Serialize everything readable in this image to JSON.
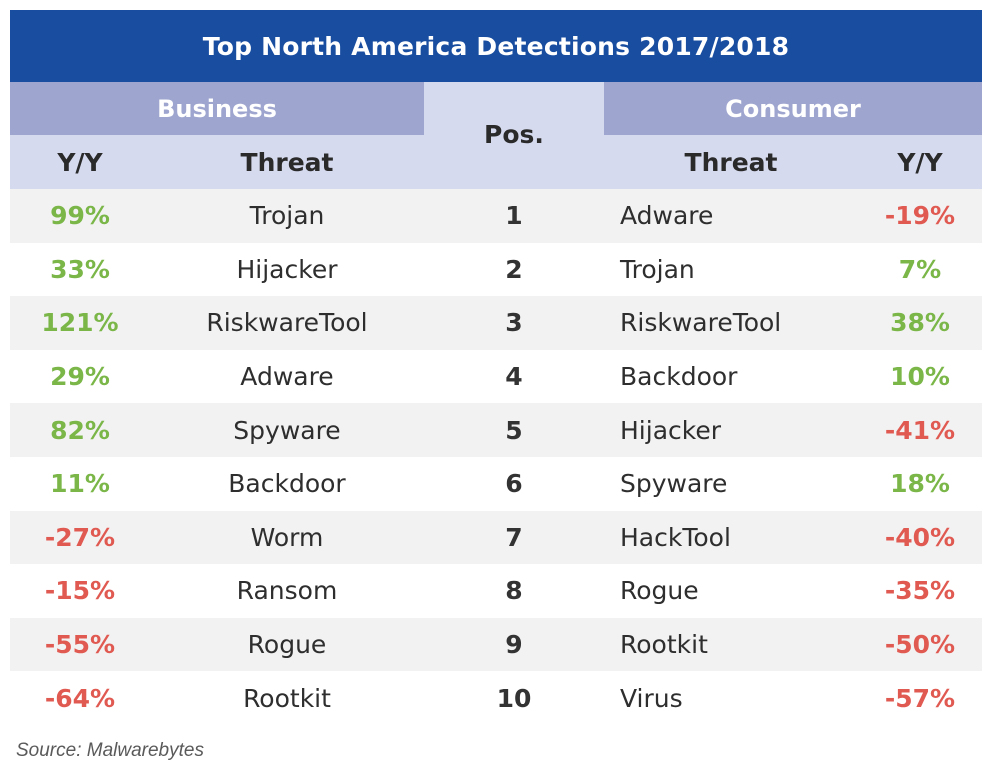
{
  "title": "Top North America Detections 2017/2018",
  "headers": {
    "business": "Business",
    "consumer": "Consumer",
    "pos": "Pos.",
    "yy": "Y/Y",
    "threat": "Threat"
  },
  "colors": {
    "title_bg": "#184da0",
    "group_header_bg": "#9ea5cf",
    "sub_header_bg": "#d6daef",
    "row_alt_bg": "#f2f2f2",
    "positive": "#7ab648",
    "negative": "#e05a52"
  },
  "chart_data": {
    "type": "table",
    "title": "Top North America Detections 2017/2018",
    "columns": [
      "Y/Y",
      "Threat",
      "Pos.",
      "Threat",
      "Y/Y"
    ],
    "rows": [
      {
        "pos": "1",
        "business_yy": "99%",
        "business_threat": "Trojan",
        "consumer_threat": "Adware",
        "consumer_yy": "-19%"
      },
      {
        "pos": "2",
        "business_yy": "33%",
        "business_threat": "Hijacker",
        "consumer_threat": "Trojan",
        "consumer_yy": "7%"
      },
      {
        "pos": "3",
        "business_yy": "121%",
        "business_threat": "RiskwareTool",
        "consumer_threat": "RiskwareTool",
        "consumer_yy": "38%"
      },
      {
        "pos": "4",
        "business_yy": "29%",
        "business_threat": "Adware",
        "consumer_threat": "Backdoor",
        "consumer_yy": "10%"
      },
      {
        "pos": "5",
        "business_yy": "82%",
        "business_threat": "Spyware",
        "consumer_threat": "Hijacker",
        "consumer_yy": "-41%"
      },
      {
        "pos": "6",
        "business_yy": "11%",
        "business_threat": "Backdoor",
        "consumer_threat": "Spyware",
        "consumer_yy": "18%"
      },
      {
        "pos": "7",
        "business_yy": "-27%",
        "business_threat": "Worm",
        "consumer_threat": "HackTool",
        "consumer_yy": "-40%"
      },
      {
        "pos": "8",
        "business_yy": "-15%",
        "business_threat": "Ransom",
        "consumer_threat": "Rogue",
        "consumer_yy": "-35%"
      },
      {
        "pos": "9",
        "business_yy": "-55%",
        "business_threat": "Rogue",
        "consumer_threat": "Rootkit",
        "consumer_yy": "-50%"
      },
      {
        "pos": "10",
        "business_yy": "-64%",
        "business_threat": "Rootkit",
        "consumer_threat": "Virus",
        "consumer_yy": "-57%"
      }
    ]
  },
  "source": "Source: Malwarebytes"
}
